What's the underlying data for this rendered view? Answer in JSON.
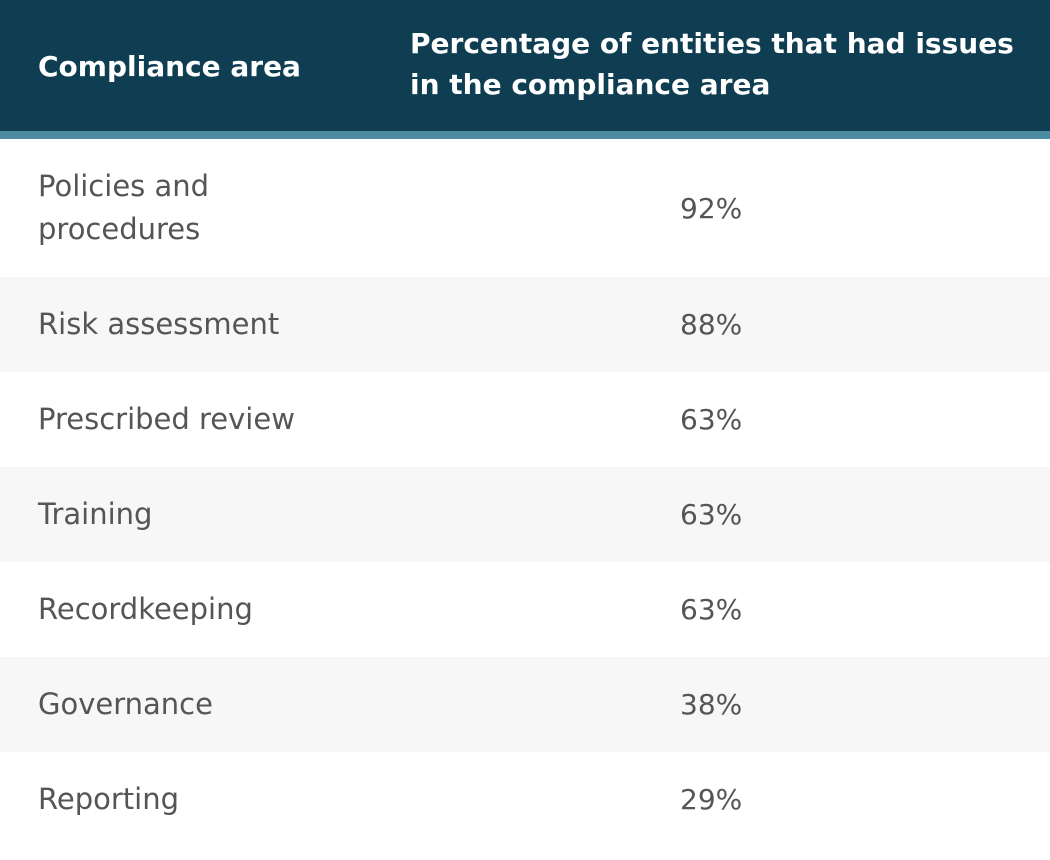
{
  "chart_data": {
    "type": "table",
    "columns": [
      "Compliance area",
      "Percentage of entities that had issues in the compliance area"
    ],
    "rows": [
      {
        "area": "Policies and procedures",
        "percentage": "92%"
      },
      {
        "area": "Risk assessment",
        "percentage": "88%"
      },
      {
        "area": "Prescribed review",
        "percentage": "63%"
      },
      {
        "area": "Training",
        "percentage": "63%"
      },
      {
        "area": "Recordkeeping",
        "percentage": "63%"
      },
      {
        "area": "Governance",
        "percentage": "38%"
      },
      {
        "area": "Reporting",
        "percentage": "29%"
      }
    ]
  },
  "colors": {
    "header_background": "#0f3e52",
    "header_accent": "#4d8ba0",
    "header_text": "#ffffff",
    "row_alt_background": "#f7f7f7",
    "body_text": "#555555"
  }
}
